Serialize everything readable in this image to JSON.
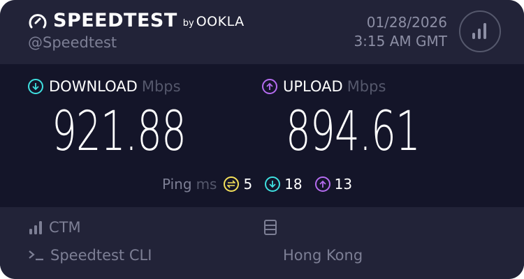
{
  "header": {
    "brand": "SPEEDTEST",
    "by": "by",
    "company": "OOKLA",
    "handle": "@Speedtest",
    "date": "01/28/2026",
    "time": "3:15 AM GMT"
  },
  "download": {
    "label": "DOWNLOAD",
    "unit": "Mbps",
    "value": "921.88",
    "color": "#3fe0e0"
  },
  "upload": {
    "label": "UPLOAD",
    "unit": "Mbps",
    "value": "894.61",
    "color": "#b56cf0"
  },
  "ping": {
    "label": "Ping",
    "unit": "ms",
    "idle": "5",
    "download": "18",
    "upload": "13",
    "idle_color": "#f5e15a"
  },
  "footer": {
    "isp": "CTM",
    "client": "Speedtest CLI",
    "server": "Hong Kong"
  }
}
